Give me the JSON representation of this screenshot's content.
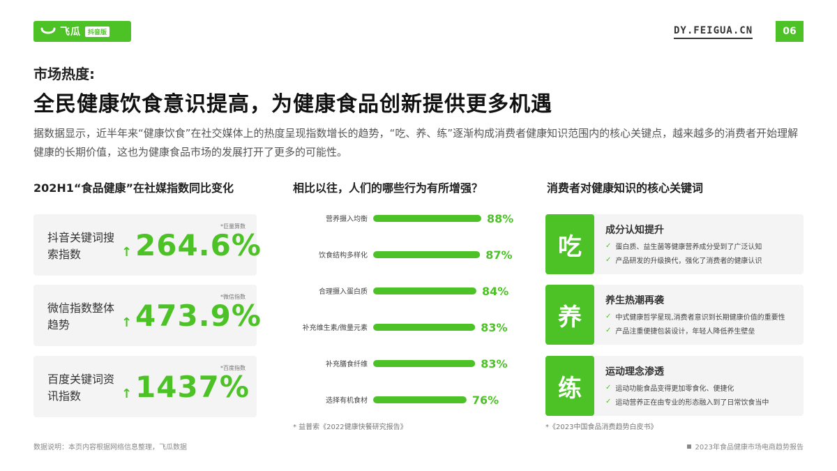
{
  "header": {
    "logo_text": "飞瓜",
    "logo_tag": "抖音版",
    "site": "DY.FEIGUA.CN",
    "page_number": "06"
  },
  "kicker": "市场热度:",
  "title": "全民健康饮食意识提高，为健康食品创新提供更多机遇",
  "description": "据数据显示，近半年来“健康饮食”在社交媒体上的热度呈现指数增长的趋势，“吃、养、练”逐渐构成消费者健康知识范围内的核心关键点，越来越多的消费者开始理解健康的长期价值，这也为健康食品市场的发展打开了更多的可能性。",
  "left": {
    "title": "202H1“食品健康”在社媒指数同比变化",
    "cards": [
      {
        "label": "抖音关键词搜索指数",
        "source": "*巨量算数",
        "value": "264.6%"
      },
      {
        "label": "微信指数整体趋势",
        "source": "*微信指数",
        "value": "473.9%"
      },
      {
        "label": "百度关键词资讯指数",
        "source": "*百度指数",
        "value": "1437%"
      }
    ]
  },
  "middle": {
    "title": "相比以往，人们的哪些行为有所增强？",
    "note": "* 益普索《2022健康快餐研究报告》"
  },
  "chart_data": {
    "type": "bar",
    "orientation": "horizontal",
    "categories": [
      "营养摄入均衡",
      "饮食结构多样化",
      "合理摄入蛋白质",
      "补充维生素/微量元素",
      "补充膳食纤维",
      "选择有机食材"
    ],
    "values": [
      88,
      87,
      84,
      83,
      83,
      76
    ],
    "value_labels": [
      "88%",
      "87%",
      "84%",
      "83%",
      "83%",
      "76%"
    ],
    "bar_color": "#4cc226",
    "title": "相比以往，人们的哪些行为有所增强？"
  },
  "right": {
    "title": "消费者对健康知识的核心关键词",
    "note": "*《2023中国食品消费趋势白皮书》",
    "cards": [
      {
        "char": "吃",
        "title": "成分认知提升",
        "lines": [
          "蛋白质、益生菌等健康营养成分受到了广泛认知",
          "产品研发的升级换代，强化了消费者的健康认识"
        ]
      },
      {
        "char": "养",
        "title": "养生热潮再袭",
        "lines": [
          "中式健康哲学星现,消费者意识到长期健康价值的重要性",
          "产品注重便捷包装设计，年轻人降低养生壁垒"
        ]
      },
      {
        "char": "练",
        "title": "运动理念渗透",
        "lines": [
          "运动功能食品变得更加零食化、便捷化",
          "运动营养正在由专业的形态融入到了日常饮食当中"
        ]
      }
    ]
  },
  "footer": {
    "note": "数据说明：本页内容根据网络信息整理，飞瓜数据",
    "report": "2023年食品健康市场电商趋势报告"
  },
  "colors": {
    "accent": "#4cc226"
  }
}
